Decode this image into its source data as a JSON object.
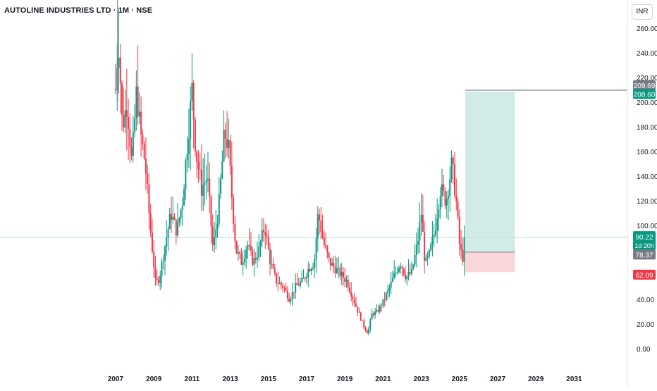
{
  "header": {
    "symbol_title": "AUTOLINE INDUSTRIES LTD · 1M · NSE",
    "currency": "INR"
  },
  "price_badges": {
    "target_price": "209.69",
    "target_entry": "208.60",
    "current_price": "90.22",
    "countdown": "1d 20h",
    "entry_price": "78.37",
    "stop_price": "62.09"
  },
  "colors": {
    "up": "#089981",
    "down": "#f23645",
    "target_zone": "#d1ece6",
    "stop_zone": "#fbd6d9",
    "grey_badge": "#787b86",
    "current_line": "#b2dfdb",
    "axis_text": "#131722"
  },
  "chart_data": {
    "type": "candlestick",
    "title": "AUTOLINE INDUSTRIES LTD · 1M · NSE",
    "xlabel": "",
    "ylabel": "",
    "currency": "INR",
    "ylim": [
      -5,
      272
    ],
    "xlim": [
      2007.0,
      2032.0
    ],
    "grid": false,
    "y_ticks": [
      "0.00",
      "20.00",
      "40.00",
      "60.00",
      "80.00",
      "100.00",
      "120.00",
      "140.00",
      "160.00",
      "180.00",
      "200.00",
      "220.00",
      "240.00",
      "260.00"
    ],
    "x_ticks": [
      "2007",
      "2009",
      "2011",
      "2013",
      "2015",
      "2017",
      "2019",
      "2021",
      "2023",
      "2025",
      "2027",
      "2029",
      "2031"
    ],
    "current_price": 90.22,
    "position": {
      "type": "long",
      "start": 2025.3,
      "end": 2027.9,
      "entry": 78.37,
      "target": 208.6,
      "stop": 62.09
    },
    "resistance_line": 209.69,
    "series_anchors": [
      [
        2007.0,
        210
      ],
      [
        2007.15,
        255
      ],
      [
        2007.35,
        180
      ],
      [
        2007.6,
        200
      ],
      [
        2007.85,
        150
      ],
      [
        2008.1,
        210
      ],
      [
        2008.3,
        175
      ],
      [
        2008.55,
        150
      ],
      [
        2008.8,
        100
      ],
      [
        2009.1,
        52
      ],
      [
        2009.3,
        58
      ],
      [
        2009.6,
        85
      ],
      [
        2009.9,
        110
      ],
      [
        2010.2,
        95
      ],
      [
        2010.5,
        120
      ],
      [
        2010.8,
        175
      ],
      [
        2011.0,
        210
      ],
      [
        2011.2,
        160
      ],
      [
        2011.5,
        130
      ],
      [
        2011.8,
        140
      ],
      [
        2012.1,
        80
      ],
      [
        2012.4,
        115
      ],
      [
        2012.7,
        175
      ],
      [
        2012.9,
        165
      ],
      [
        2013.1,
        120
      ],
      [
        2013.3,
        80
      ],
      [
        2013.6,
        70
      ],
      [
        2013.9,
        85
      ],
      [
        2014.2,
        70
      ],
      [
        2014.5,
        80
      ],
      [
        2014.8,
        100
      ],
      [
        2015.1,
        70
      ],
      [
        2015.4,
        55
      ],
      [
        2015.8,
        50
      ],
      [
        2016.1,
        40
      ],
      [
        2016.4,
        50
      ],
      [
        2016.8,
        55
      ],
      [
        2017.1,
        65
      ],
      [
        2017.4,
        70
      ],
      [
        2017.6,
        110
      ],
      [
        2017.9,
        85
      ],
      [
        2018.2,
        70
      ],
      [
        2018.5,
        65
      ],
      [
        2018.8,
        60
      ],
      [
        2019.1,
        55
      ],
      [
        2019.4,
        42
      ],
      [
        2019.7,
        30
      ],
      [
        2020.0,
        18
      ],
      [
        2020.2,
        12
      ],
      [
        2020.4,
        28
      ],
      [
        2020.7,
        30
      ],
      [
        2021.0,
        38
      ],
      [
        2021.3,
        48
      ],
      [
        2021.6,
        60
      ],
      [
        2021.9,
        70
      ],
      [
        2022.2,
        58
      ],
      [
        2022.5,
        62
      ],
      [
        2022.8,
        85
      ],
      [
        2023.0,
        110
      ],
      [
        2023.2,
        68
      ],
      [
        2023.4,
        75
      ],
      [
        2023.7,
        95
      ],
      [
        2024.0,
        130
      ],
      [
        2024.3,
        120
      ],
      [
        2024.6,
        150
      ],
      [
        2024.8,
        125
      ],
      [
        2025.0,
        85
      ],
      [
        2025.15,
        72
      ],
      [
        2025.3,
        90.22
      ]
    ]
  }
}
